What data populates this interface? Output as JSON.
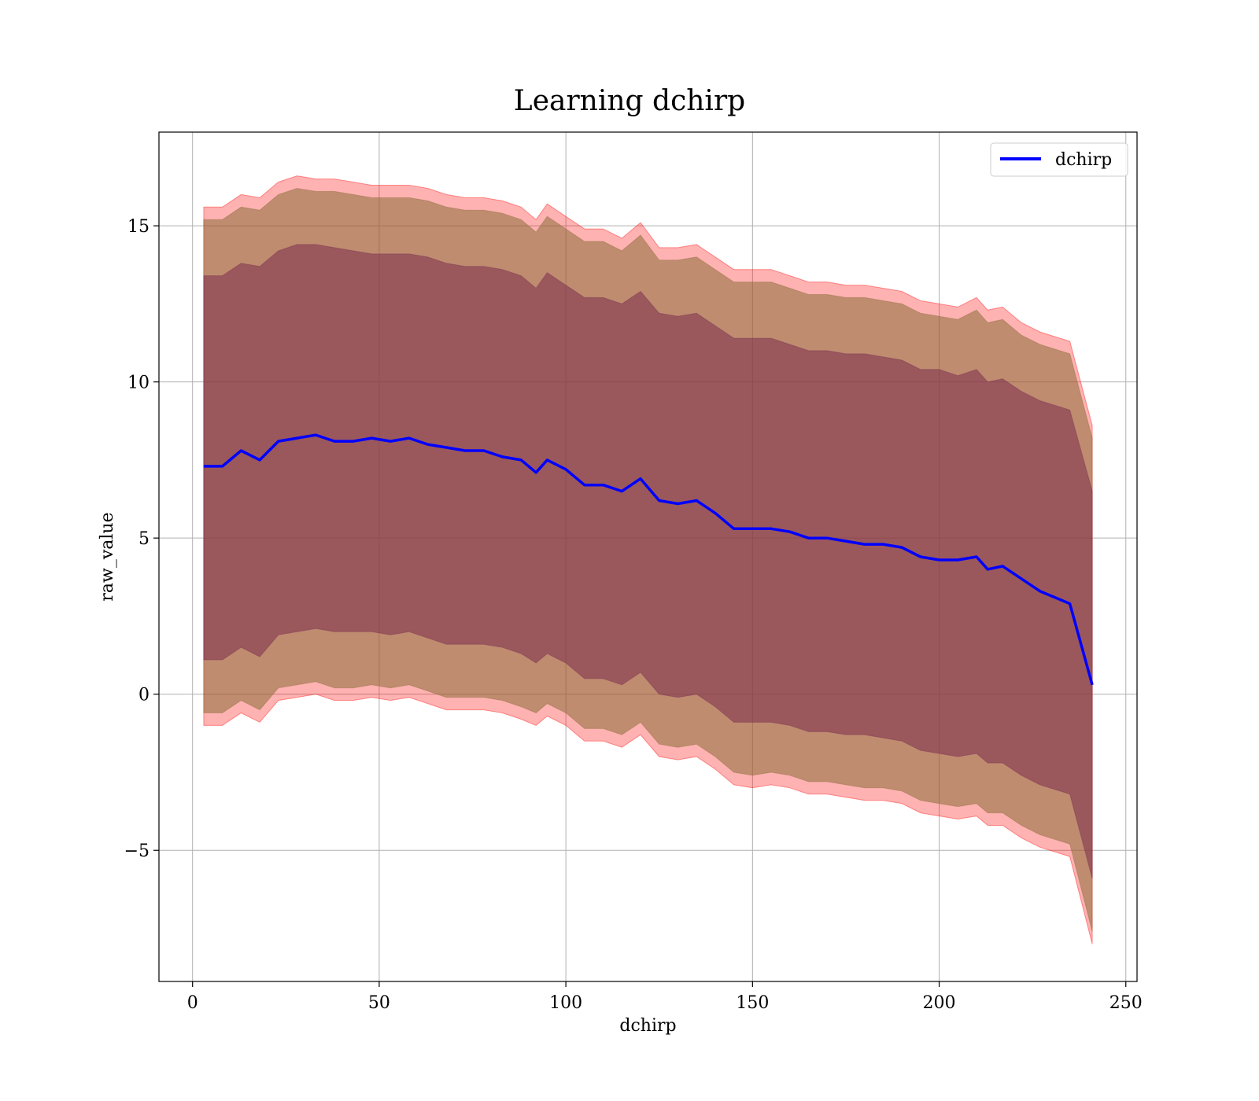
{
  "chart_data": {
    "type": "line",
    "title": "Learning dchirp",
    "xlabel": "dchirp",
    "ylabel": "raw_value",
    "xlim": [
      -9,
      253
    ],
    "ylim": [
      -9.2,
      18.0
    ],
    "xticks": [
      0,
      50,
      100,
      150,
      200,
      250
    ],
    "xtick_labels": [
      "0",
      "50",
      "100",
      "150",
      "200",
      "250"
    ],
    "yticks": [
      -5,
      0,
      5,
      10,
      15
    ],
    "ytick_labels": [
      "−5",
      "0",
      "5",
      "10",
      "15"
    ],
    "grid": true,
    "legend_position": "top-right",
    "colors": {
      "line": "#0000ff",
      "outer_band": "#ff0000",
      "middle_band": "#8b6d3a",
      "inner_band": "#7b2d4f"
    },
    "x": [
      3,
      8,
      13,
      18,
      23,
      28,
      33,
      38,
      43,
      48,
      53,
      58,
      63,
      68,
      73,
      78,
      83,
      88,
      92,
      95,
      100,
      105,
      110,
      115,
      120,
      125,
      130,
      135,
      140,
      145,
      150,
      155,
      160,
      165,
      170,
      175,
      180,
      185,
      190,
      195,
      200,
      205,
      210,
      213,
      217,
      222,
      227,
      235,
      241
    ],
    "series": [
      {
        "name": "dchirp",
        "values": [
          7.3,
          7.3,
          7.8,
          7.5,
          8.1,
          8.2,
          8.3,
          8.1,
          8.1,
          8.2,
          8.1,
          8.2,
          8.0,
          7.9,
          7.8,
          7.8,
          7.6,
          7.5,
          7.1,
          7.5,
          7.2,
          6.7,
          6.7,
          6.5,
          6.9,
          6.2,
          6.1,
          6.2,
          5.8,
          5.3,
          5.3,
          5.3,
          5.2,
          5.0,
          5.0,
          4.9,
          4.8,
          4.8,
          4.7,
          4.4,
          4.3,
          4.3,
          4.4,
          4.0,
          4.1,
          3.7,
          3.3,
          2.9,
          0.3
        ]
      }
    ],
    "bands": [
      {
        "level": "outer",
        "upper": [
          15.6,
          15.6,
          16.0,
          15.9,
          16.4,
          16.6,
          16.5,
          16.5,
          16.4,
          16.3,
          16.3,
          16.3,
          16.2,
          16.0,
          15.9,
          15.9,
          15.8,
          15.6,
          15.2,
          15.7,
          15.3,
          14.9,
          14.9,
          14.6,
          15.1,
          14.3,
          14.3,
          14.4,
          14.0,
          13.6,
          13.6,
          13.6,
          13.4,
          13.2,
          13.2,
          13.1,
          13.1,
          13.0,
          12.9,
          12.6,
          12.5,
          12.4,
          12.7,
          12.3,
          12.4,
          11.9,
          11.6,
          11.3,
          8.6
        ],
        "lower": [
          -1.0,
          -1.0,
          -0.6,
          -0.9,
          -0.2,
          -0.1,
          0.0,
          -0.2,
          -0.2,
          -0.1,
          -0.2,
          -0.1,
          -0.3,
          -0.5,
          -0.5,
          -0.5,
          -0.6,
          -0.8,
          -1.0,
          -0.7,
          -1.0,
          -1.5,
          -1.5,
          -1.7,
          -1.3,
          -2.0,
          -2.1,
          -2.0,
          -2.4,
          -2.9,
          -3.0,
          -2.9,
          -3.0,
          -3.2,
          -3.2,
          -3.3,
          -3.4,
          -3.4,
          -3.5,
          -3.8,
          -3.9,
          -4.0,
          -3.9,
          -4.2,
          -4.2,
          -4.6,
          -4.9,
          -5.2,
          -8.0
        ]
      },
      {
        "level": "middle",
        "upper": [
          15.2,
          15.2,
          15.6,
          15.5,
          16.0,
          16.2,
          16.1,
          16.1,
          16.0,
          15.9,
          15.9,
          15.9,
          15.8,
          15.6,
          15.5,
          15.5,
          15.4,
          15.2,
          14.8,
          15.3,
          14.9,
          14.5,
          14.5,
          14.2,
          14.7,
          13.9,
          13.9,
          14.0,
          13.6,
          13.2,
          13.2,
          13.2,
          13.0,
          12.8,
          12.8,
          12.7,
          12.7,
          12.6,
          12.5,
          12.2,
          12.1,
          12.0,
          12.3,
          11.9,
          12.0,
          11.5,
          11.2,
          10.9,
          8.2
        ],
        "lower": [
          -0.6,
          -0.6,
          -0.2,
          -0.5,
          0.2,
          0.3,
          0.4,
          0.2,
          0.2,
          0.3,
          0.2,
          0.3,
          0.1,
          -0.1,
          -0.1,
          -0.1,
          -0.2,
          -0.4,
          -0.6,
          -0.3,
          -0.6,
          -1.1,
          -1.1,
          -1.3,
          -0.9,
          -1.6,
          -1.7,
          -1.6,
          -2.0,
          -2.5,
          -2.6,
          -2.5,
          -2.6,
          -2.8,
          -2.8,
          -2.9,
          -3.0,
          -3.0,
          -3.1,
          -3.4,
          -3.5,
          -3.6,
          -3.5,
          -3.8,
          -3.8,
          -4.2,
          -4.5,
          -4.8,
          -7.6
        ]
      },
      {
        "level": "inner",
        "upper": [
          13.4,
          13.4,
          13.8,
          13.7,
          14.2,
          14.4,
          14.4,
          14.3,
          14.2,
          14.1,
          14.1,
          14.1,
          14.0,
          13.8,
          13.7,
          13.7,
          13.6,
          13.4,
          13.0,
          13.5,
          13.1,
          12.7,
          12.7,
          12.5,
          12.9,
          12.2,
          12.1,
          12.2,
          11.8,
          11.4,
          11.4,
          11.4,
          11.2,
          11.0,
          11.0,
          10.9,
          10.9,
          10.8,
          10.7,
          10.4,
          10.4,
          10.2,
          10.4,
          10.0,
          10.1,
          9.7,
          9.4,
          9.1,
          6.5
        ],
        "lower": [
          1.1,
          1.1,
          1.5,
          1.2,
          1.9,
          2.0,
          2.1,
          2.0,
          2.0,
          2.0,
          1.9,
          2.0,
          1.8,
          1.6,
          1.6,
          1.6,
          1.5,
          1.3,
          1.0,
          1.3,
          1.0,
          0.5,
          0.5,
          0.3,
          0.7,
          0.0,
          -0.1,
          0.0,
          -0.4,
          -0.9,
          -0.9,
          -0.9,
          -1.0,
          -1.2,
          -1.2,
          -1.3,
          -1.3,
          -1.4,
          -1.5,
          -1.8,
          -1.9,
          -2.0,
          -1.9,
          -2.2,
          -2.2,
          -2.6,
          -2.9,
          -3.2,
          -5.9
        ]
      }
    ]
  }
}
